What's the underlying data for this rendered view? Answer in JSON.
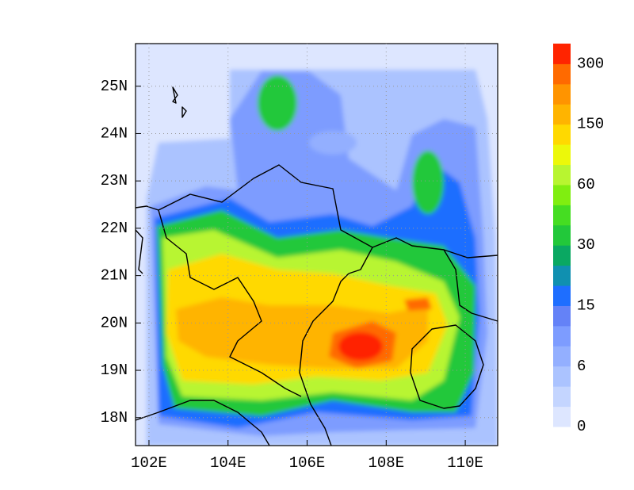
{
  "map": {
    "xlim": [
      101.66,
      110.82
    ],
    "ylim": [
      17.41,
      25.9
    ],
    "xticks": [
      {
        "value": 102,
        "label": "102E"
      },
      {
        "value": 104,
        "label": "104E"
      },
      {
        "value": 106,
        "label": "106E"
      },
      {
        "value": 108,
        "label": "108E"
      },
      {
        "value": 110,
        "label": "110E"
      }
    ],
    "yticks": [
      {
        "value": 18,
        "label": "18N"
      },
      {
        "value": 19,
        "label": "19N"
      },
      {
        "value": 20,
        "label": "20N"
      },
      {
        "value": 21,
        "label": "21N"
      },
      {
        "value": 22,
        "label": "22N"
      },
      {
        "value": 23,
        "label": "23N"
      },
      {
        "value": 24,
        "label": "24N"
      },
      {
        "value": 25,
        "label": "25N"
      }
    ],
    "grid": true
  },
  "colorbar": {
    "ticks": [
      0,
      6,
      15,
      30,
      60,
      150,
      300
    ],
    "colors": [
      "#dde6ff",
      "#c4d5ff",
      "#abc3ff",
      "#93afff",
      "#7d9cff",
      "#6482f7",
      "#1e6eff",
      "#1090b0",
      "#0aa862",
      "#22c83a",
      "#45dd22",
      "#80ee10",
      "#b8f530",
      "#ecf80a",
      "#ffd900",
      "#ffb400",
      "#ff9400",
      "#ff6a00",
      "#ff2400"
    ]
  }
}
